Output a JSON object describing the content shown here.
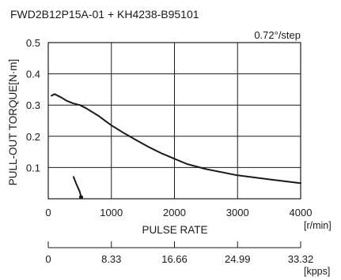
{
  "chart_data": {
    "type": "line",
    "title": "FWD2B12P15A-01 + KH4238-B95101",
    "annotation": "0.72°/step",
    "xlabel": "PULSE RATE",
    "ylabel": "PULL-OUT TORQUE[N·m]",
    "xlim": [
      0,
      4000
    ],
    "ylim": [
      0,
      0.5
    ],
    "x_ticks": [
      0,
      1000,
      2000,
      3000,
      4000
    ],
    "x_tick_labels": [
      "0",
      "1000",
      "2000",
      "3000",
      "4000"
    ],
    "y_ticks": [
      0.1,
      0.2,
      0.3,
      0.4,
      0.5
    ],
    "y_tick_labels": [
      "0.1",
      "0.2",
      "0.3",
      "0.4",
      "0.5"
    ],
    "x_unit": "[r/min]",
    "secondary_x_tick_labels": [
      "0",
      "8.33",
      "16.66",
      "24.99",
      "33.32"
    ],
    "secondary_x_unit": "[kpps]",
    "grid": true,
    "series": [
      {
        "values": [
          [
            50,
            0.33
          ],
          [
            100,
            0.335
          ],
          [
            200,
            0.325
          ],
          [
            300,
            0.313
          ],
          [
            400,
            0.305
          ],
          [
            500,
            0.3
          ],
          [
            600,
            0.29
          ],
          [
            800,
            0.265
          ],
          [
            1000,
            0.235
          ],
          [
            1200,
            0.21
          ],
          [
            1400,
            0.187
          ],
          [
            1600,
            0.165
          ],
          [
            1800,
            0.145
          ],
          [
            2000,
            0.128
          ],
          [
            2200,
            0.111
          ],
          [
            2500,
            0.095
          ],
          [
            3000,
            0.075
          ],
          [
            3500,
            0.062
          ],
          [
            4000,
            0.05
          ]
        ]
      },
      {
        "values": [
          [
            400,
            0.07
          ],
          [
            450,
            0.045
          ],
          [
            500,
            0.022
          ],
          [
            520,
            0.005
          ]
        ],
        "end_marker": [
          520,
          0.005
        ]
      }
    ]
  }
}
